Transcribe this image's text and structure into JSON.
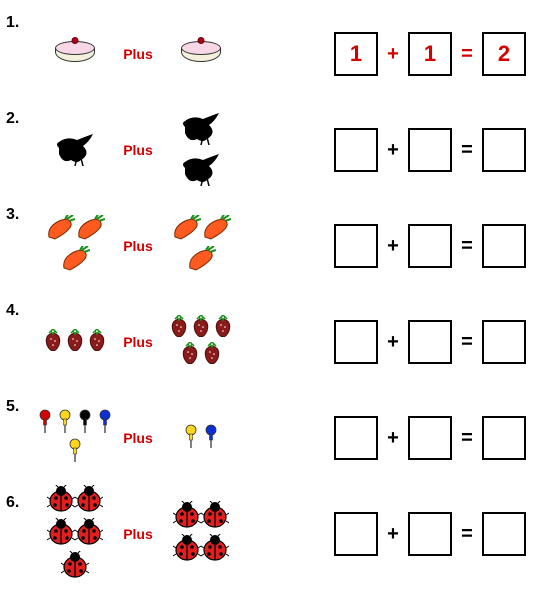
{
  "plus_label": "Plus",
  "colors": {
    "accent": "#d40000",
    "black": "#000000",
    "cake_icing": "#f7d6e6",
    "cake_body": "#f4f0dc",
    "carrot": "#ff5a1f",
    "carrot_leaf": "#1a8f1a",
    "strawberry": "#8b1a1a",
    "strawberry_leaf": "#1a8f1a",
    "pin_red": "#d40000",
    "pin_yellow": "#ffd61a",
    "pin_blue": "#0a2fd4",
    "pin_black": "#000000",
    "ladybug_red": "#e02020",
    "ladybug_black": "#000000"
  },
  "rows": [
    {
      "num": "1.",
      "left": {
        "kind": "cake",
        "count": 1
      },
      "right": {
        "kind": "cake",
        "count": 1
      },
      "eq": {
        "a": "1",
        "b": "1",
        "c": "2",
        "filled": true
      }
    },
    {
      "num": "2.",
      "left": {
        "kind": "bird",
        "count": 1
      },
      "right": {
        "kind": "bird",
        "count": 2
      },
      "eq": {
        "a": "",
        "b": "",
        "c": "",
        "filled": false
      }
    },
    {
      "num": "3.",
      "left": {
        "kind": "carrot",
        "count": 3
      },
      "right": {
        "kind": "carrot",
        "count": 3
      },
      "eq": {
        "a": "",
        "b": "",
        "c": "",
        "filled": false
      }
    },
    {
      "num": "4.",
      "left": {
        "kind": "strawberry",
        "count": 3
      },
      "right": {
        "kind": "strawberry",
        "count": 5
      },
      "eq": {
        "a": "",
        "b": "",
        "c": "",
        "filled": false
      }
    },
    {
      "num": "5.",
      "left": {
        "kind": "pin",
        "count": 5,
        "colors": [
          "pin_red",
          "pin_yellow",
          "pin_black",
          "pin_blue",
          "pin_yellow"
        ]
      },
      "right": {
        "kind": "pin",
        "count": 2,
        "colors": [
          "pin_yellow",
          "pin_blue"
        ]
      },
      "eq": {
        "a": "",
        "b": "",
        "c": "",
        "filled": false
      }
    },
    {
      "num": "6.",
      "left": {
        "kind": "ladybug",
        "count": 5
      },
      "right": {
        "kind": "ladybug",
        "count": 4
      },
      "eq": {
        "a": "",
        "b": "",
        "c": "",
        "filled": false
      }
    }
  ]
}
